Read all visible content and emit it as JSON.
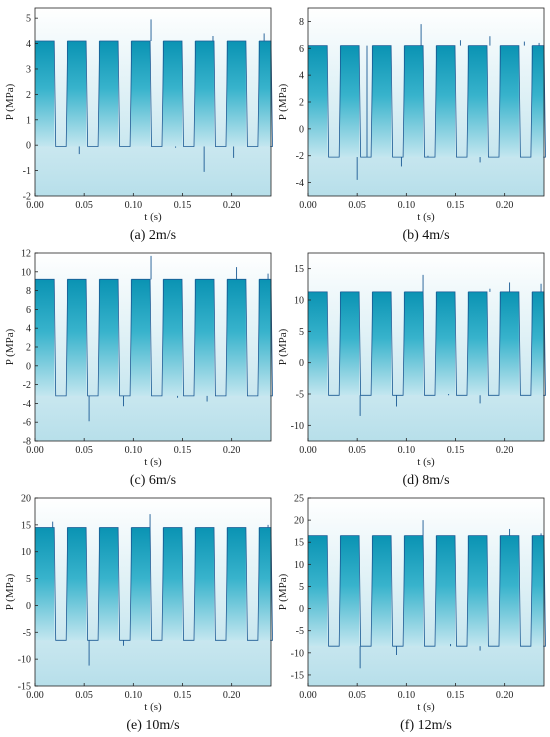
{
  "chart_data": [
    {
      "type": "area",
      "caption": "(a) 2m/s",
      "xlabel": "t (s)",
      "ylabel": "P (MPa)",
      "xlim": [
        0,
        0.24
      ],
      "ylim": [
        -2,
        5.4
      ],
      "xticks": [
        "0.00",
        "0.05",
        "0.10",
        "0.15",
        "0.20"
      ],
      "yticks": [
        "-2",
        "-1",
        "0",
        "1",
        "2",
        "3",
        "4",
        "5"
      ],
      "high": 4.1,
      "low": -0.05,
      "spikes": [
        [
          0.045,
          -0.35
        ],
        [
          0.118,
          4.95
        ],
        [
          0.143,
          -0.1
        ],
        [
          0.172,
          -1.05
        ],
        [
          0.181,
          4.3
        ],
        [
          0.202,
          -0.5
        ],
        [
          0.233,
          4.4
        ]
      ]
    },
    {
      "type": "area",
      "caption": "(b) 4m/s",
      "xlabel": "t (s)",
      "ylabel": "P (MPa)",
      "xlim": [
        0,
        0.24
      ],
      "ylim": [
        -5,
        9
      ],
      "xticks": [
        "0.00",
        "0.05",
        "0.10",
        "0.15",
        "0.20"
      ],
      "yticks": [
        "-4",
        "-2",
        "0",
        "2",
        "4",
        "6",
        "8"
      ],
      "high": 6.2,
      "low": -2.1,
      "spikes": [
        [
          0.05,
          -3.8
        ],
        [
          0.06,
          6.2
        ],
        [
          0.095,
          -2.8
        ],
        [
          0.115,
          7.8
        ],
        [
          0.122,
          -2.0
        ],
        [
          0.155,
          6.6
        ],
        [
          0.175,
          -2.5
        ],
        [
          0.185,
          6.9
        ],
        [
          0.22,
          6.5
        ],
        [
          0.235,
          6.4
        ]
      ]
    },
    {
      "type": "area",
      "caption": "(c) 6m/s",
      "xlabel": "t (s)",
      "ylabel": "P (MPa)",
      "xlim": [
        0,
        0.24
      ],
      "ylim": [
        -8,
        12
      ],
      "xticks": [
        "0.00",
        "0.05",
        "0.10",
        "0.15",
        "0.20"
      ],
      "yticks": [
        "-8",
        "-6",
        "-4",
        "-2",
        "0",
        "2",
        "4",
        "6",
        "8",
        "10",
        "12"
      ],
      "high": 9.2,
      "low": -3.2,
      "spikes": [
        [
          0.055,
          -5.9
        ],
        [
          0.09,
          -4.3
        ],
        [
          0.118,
          11.7
        ],
        [
          0.145,
          -3.4
        ],
        [
          0.175,
          -3.8
        ],
        [
          0.205,
          10.5
        ],
        [
          0.237,
          9.8
        ]
      ]
    },
    {
      "type": "area",
      "caption": "(d) 8m/s",
      "xlabel": "t (s)",
      "ylabel": "P (MPa)",
      "xlim": [
        0,
        0.24
      ],
      "ylim": [
        -12.5,
        17.5
      ],
      "xticks": [
        "0.00",
        "0.05",
        "0.10",
        "0.15",
        "0.20"
      ],
      "yticks": [
        "-10",
        "-5",
        "0",
        "5",
        "10",
        "15"
      ],
      "high": 11.3,
      "low": -5.2,
      "spikes": [
        [
          0.053,
          -8.5
        ],
        [
          0.09,
          -7.0
        ],
        [
          0.117,
          14.0
        ],
        [
          0.143,
          -5.0
        ],
        [
          0.175,
          -6.5
        ],
        [
          0.185,
          11.8
        ],
        [
          0.205,
          12.8
        ],
        [
          0.237,
          12.6
        ]
      ]
    },
    {
      "type": "area",
      "caption": "(e) 10m/s",
      "xlabel": "t (s)",
      "ylabel": "P (MPa)",
      "xlim": [
        0,
        0.24
      ],
      "ylim": [
        -15,
        20
      ],
      "xticks": [
        "0.00",
        "0.05",
        "0.10",
        "0.15",
        "0.20"
      ],
      "yticks": [
        "-15",
        "-10",
        "-5",
        "0",
        "5",
        "10",
        "15",
        "20"
      ],
      "high": 14.5,
      "low": -6.5,
      "spikes": [
        [
          0.018,
          15.6
        ],
        [
          0.055,
          -11.2
        ],
        [
          0.09,
          -7.5
        ],
        [
          0.117,
          17.0
        ],
        [
          0.237,
          15.0
        ]
      ]
    },
    {
      "type": "area",
      "caption": "(f) 12m/s",
      "xlabel": "t (s)",
      "ylabel": "P (MPa)",
      "xlim": [
        0,
        0.24
      ],
      "ylim": [
        -17.5,
        25
      ],
      "xticks": [
        "0.00",
        "0.05",
        "0.10",
        "0.15",
        "0.20"
      ],
      "yticks": [
        "-15",
        "-10",
        "-5",
        "0",
        "5",
        "10",
        "15",
        "20",
        "25"
      ],
      "high": 16.5,
      "low": -8.5,
      "spikes": [
        [
          0.053,
          -13.5
        ],
        [
          0.09,
          -10.5
        ],
        [
          0.117,
          20.0
        ],
        [
          0.145,
          -8.0
        ],
        [
          0.175,
          -9.5
        ],
        [
          0.205,
          18.0
        ],
        [
          0.237,
          17.0
        ]
      ]
    }
  ]
}
